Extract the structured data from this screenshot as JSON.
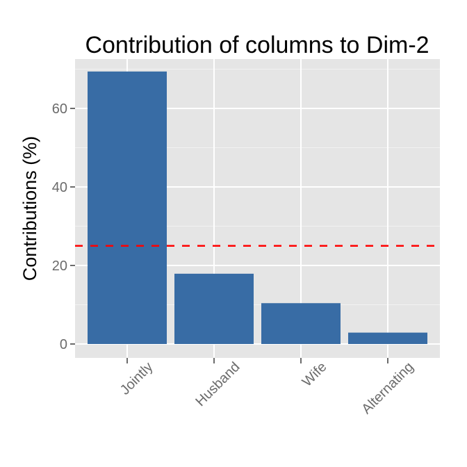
{
  "chart_data": {
    "type": "bar",
    "title": "Contribution of columns to Dim-2",
    "xlabel": "",
    "ylabel": "Contributions (%)",
    "categories": [
      "Jointly",
      "Husband",
      "Wife",
      "Alternating"
    ],
    "values": [
      69.4,
      17.9,
      10.4,
      2.9
    ],
    "ylim": [
      -3.5,
      72.8
    ],
    "yticks": [
      0,
      20,
      40,
      60
    ],
    "ytick_labels": [
      "0",
      "20",
      "40",
      "60"
    ],
    "reference_line": {
      "y": 25,
      "style": "dashed",
      "color": "#FF0000"
    },
    "grid": true,
    "legend": null,
    "x_tick_rotation": 45,
    "colors": {
      "bar": "#386CA5",
      "panel_background": "#E5E5E5",
      "major_grid": "#FFFFFF",
      "minor_grid": "#F2F2F2",
      "tick_text": "#6B6B6B",
      "tick_mark": "#6B6B6B"
    }
  }
}
